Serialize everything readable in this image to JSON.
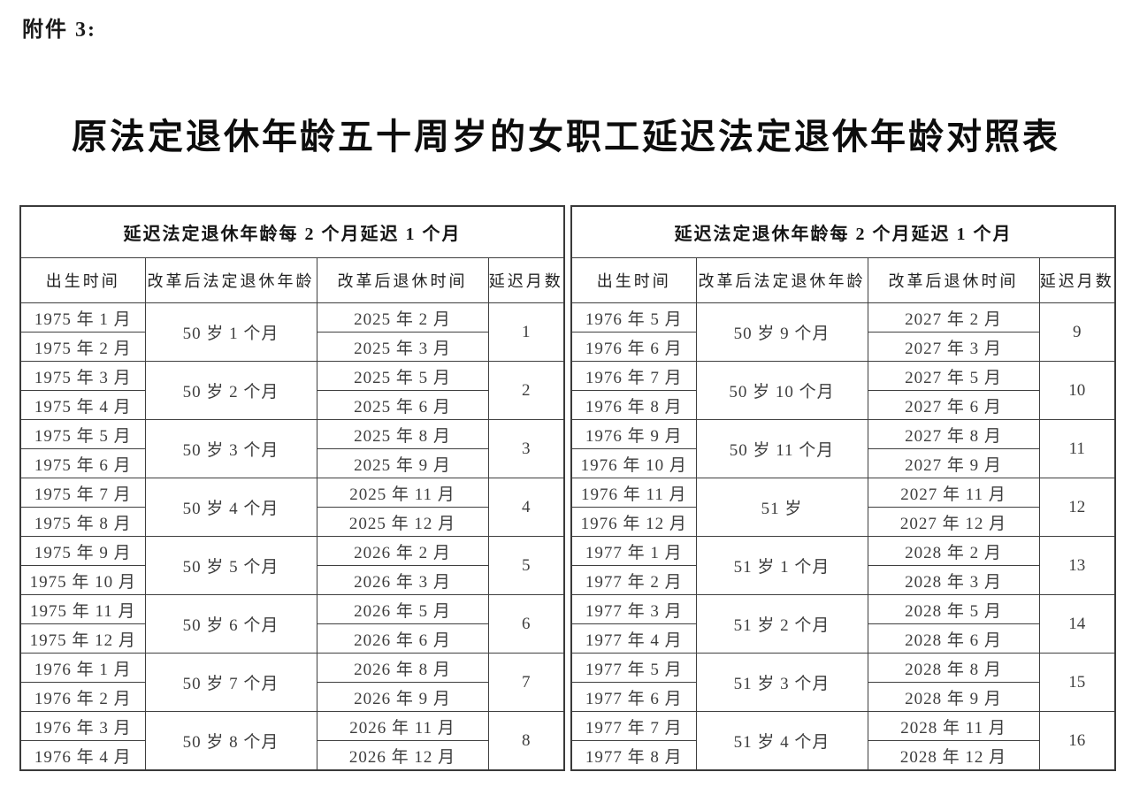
{
  "page": {
    "attachment_label": "附件 3:",
    "title": "原法定退休年龄五十周岁的女职工延迟法定退休年龄对照表"
  },
  "table": {
    "group_header": "延迟法定退休年龄每 2 个月延迟 1 个月",
    "columns": [
      "出生时间",
      "改革后法定退休年龄",
      "改革后退休时间",
      "延迟月数"
    ],
    "left_groups": [
      {
        "births": [
          "1975 年 1 月",
          "1975 年 2 月"
        ],
        "age": "50 岁 1 个月",
        "retire": [
          "2025 年 2 月",
          "2025 年 3 月"
        ],
        "delay": "1"
      },
      {
        "births": [
          "1975 年 3 月",
          "1975 年 4 月"
        ],
        "age": "50 岁 2 个月",
        "retire": [
          "2025 年 5 月",
          "2025 年 6 月"
        ],
        "delay": "2"
      },
      {
        "births": [
          "1975 年 5 月",
          "1975 年 6 月"
        ],
        "age": "50 岁 3 个月",
        "retire": [
          "2025 年 8 月",
          "2025 年 9 月"
        ],
        "delay": "3"
      },
      {
        "births": [
          "1975 年 7 月",
          "1975 年 8 月"
        ],
        "age": "50 岁 4 个月",
        "retire": [
          "2025 年 11 月",
          "2025 年 12 月"
        ],
        "delay": "4"
      },
      {
        "births": [
          "1975 年 9 月",
          "1975 年 10 月"
        ],
        "age": "50 岁 5 个月",
        "retire": [
          "2026 年 2 月",
          "2026 年 3 月"
        ],
        "delay": "5"
      },
      {
        "births": [
          "1975 年 11 月",
          "1975 年 12 月"
        ],
        "age": "50 岁 6 个月",
        "retire": [
          "2026 年 5 月",
          "2026 年 6 月"
        ],
        "delay": "6"
      },
      {
        "births": [
          "1976 年 1 月",
          "1976 年 2 月"
        ],
        "age": "50 岁 7 个月",
        "retire": [
          "2026 年 8 月",
          "2026 年 9 月"
        ],
        "delay": "7"
      },
      {
        "births": [
          "1976 年 3 月",
          "1976 年 4 月"
        ],
        "age": "50 岁 8 个月",
        "retire": [
          "2026 年 11 月",
          "2026 年 12 月"
        ],
        "delay": "8"
      }
    ],
    "right_groups": [
      {
        "births": [
          "1976 年 5 月",
          "1976 年 6 月"
        ],
        "age": "50 岁 9 个月",
        "retire": [
          "2027 年 2 月",
          "2027 年 3 月"
        ],
        "delay": "9"
      },
      {
        "births": [
          "1976 年 7 月",
          "1976 年 8 月"
        ],
        "age": "50 岁 10 个月",
        "retire": [
          "2027 年 5 月",
          "2027 年 6 月"
        ],
        "delay": "10"
      },
      {
        "births": [
          "1976 年 9 月",
          "1976 年 10 月"
        ],
        "age": "50 岁 11 个月",
        "retire": [
          "2027 年 8 月",
          "2027 年 9 月"
        ],
        "delay": "11"
      },
      {
        "births": [
          "1976 年 11 月",
          "1976 年 12 月"
        ],
        "age": "51 岁",
        "retire": [
          "2027 年 11 月",
          "2027 年 12 月"
        ],
        "delay": "12"
      },
      {
        "births": [
          "1977 年 1 月",
          "1977 年 2 月"
        ],
        "age": "51 岁 1 个月",
        "retire": [
          "2028 年 2 月",
          "2028 年 3 月"
        ],
        "delay": "13"
      },
      {
        "births": [
          "1977 年 3 月",
          "1977 年 4 月"
        ],
        "age": "51 岁 2 个月",
        "retire": [
          "2028 年 5 月",
          "2028 年 6 月"
        ],
        "delay": "14"
      },
      {
        "births": [
          "1977 年 5 月",
          "1977 年 6 月"
        ],
        "age": "51 岁 3 个月",
        "retire": [
          "2028 年 8 月",
          "2028 年 9 月"
        ],
        "delay": "15"
      },
      {
        "births": [
          "1977 年 7 月",
          "1977 年 8 月"
        ],
        "age": "51 岁 4 个月",
        "retire": [
          "2028 年 11 月",
          "2028 年 12 月"
        ],
        "delay": "16"
      }
    ]
  }
}
